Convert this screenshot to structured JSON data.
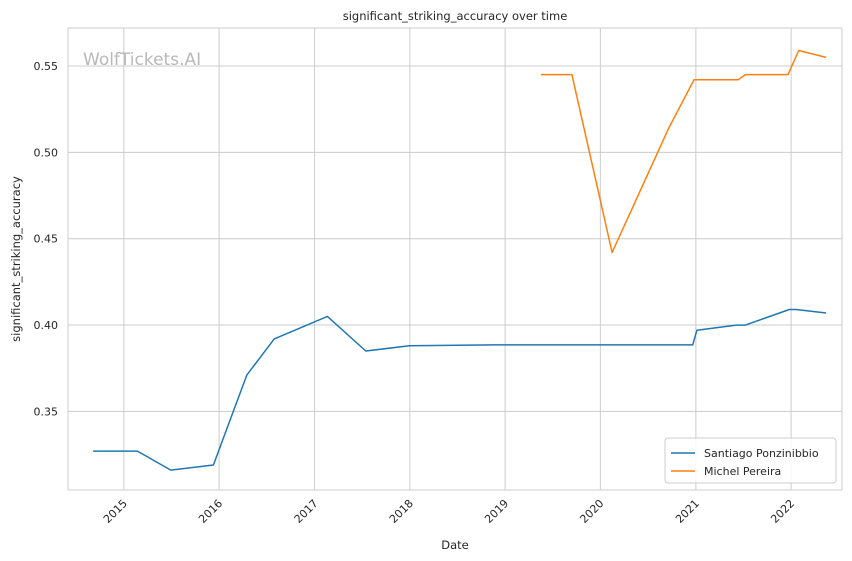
{
  "chart_data": {
    "type": "line",
    "title": "significant_striking_accuracy over time",
    "xlabel": "Date",
    "ylabel": "significant_striking_accuracy",
    "watermark": "WolfTickets.AI",
    "xlim": [
      "2014-06-01",
      "2022-07-15"
    ],
    "ylim": [
      0.3045,
      0.572
    ],
    "x_ticks": [
      "2015",
      "2016",
      "2017",
      "2018",
      "2019",
      "2020",
      "2021",
      "2022"
    ],
    "y_ticks": [
      0.35,
      0.4,
      0.45,
      0.5,
      0.55
    ],
    "y_tick_labels": [
      "0.35",
      "0.40",
      "0.45",
      "0.50",
      "0.55"
    ],
    "grid": true,
    "legend_position": "bottom-right",
    "series": [
      {
        "name": "Santiago Ponzinibbio",
        "color": "#1f77b4",
        "points": [
          [
            "2014-09-05",
            0.327
          ],
          [
            "2015-02-22",
            0.327
          ],
          [
            "2015-06-30",
            0.316
          ],
          [
            "2015-12-10",
            0.319
          ],
          [
            "2016-04-16",
            0.371
          ],
          [
            "2016-07-30",
            0.392
          ],
          [
            "2017-02-19",
            0.405
          ],
          [
            "2017-07-16",
            0.385
          ],
          [
            "2017-12-30",
            0.388
          ],
          [
            "2018-11-17",
            0.3885
          ],
          [
            "2020-12-20",
            0.3885
          ],
          [
            "2021-01-05",
            0.397
          ],
          [
            "2021-06-05",
            0.4
          ],
          [
            "2021-07-10",
            0.4
          ],
          [
            "2021-12-25",
            0.409
          ],
          [
            "2022-01-20",
            0.409
          ],
          [
            "2022-05-15",
            0.407
          ]
        ]
      },
      {
        "name": "Michel Pereira",
        "color": "#ff7f0e",
        "points": [
          [
            "2019-05-18",
            0.545
          ],
          [
            "2019-09-14",
            0.545
          ],
          [
            "2020-02-15",
            0.442
          ],
          [
            "2020-09-19",
            0.514
          ],
          [
            "2020-12-25",
            0.542
          ],
          [
            "2021-06-12",
            0.542
          ],
          [
            "2021-07-10",
            0.545
          ],
          [
            "2021-12-20",
            0.545
          ],
          [
            "2022-01-30",
            0.559
          ],
          [
            "2022-05-15",
            0.555
          ]
        ]
      }
    ]
  }
}
